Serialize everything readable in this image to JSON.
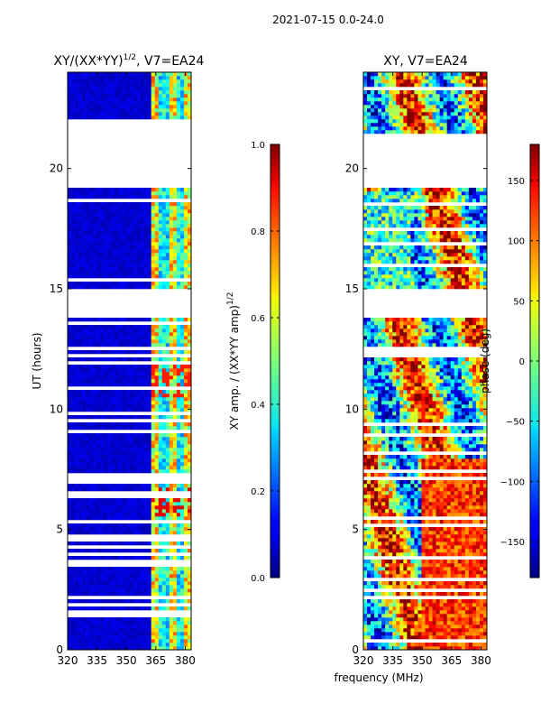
{
  "figure": {
    "suptitle": "2021-07-15 0.0-24.0"
  },
  "chart_data": [
    {
      "type": "heatmap",
      "title_main": "XY/(XX*YY)",
      "title_exp": "1/2",
      "title_suffix": ", V7=EA24",
      "xlabel": "",
      "ylabel": "UT (hours)",
      "xlim": [
        320,
        383
      ],
      "ylim": [
        0,
        24
      ],
      "x_ticks": [
        320,
        335,
        350,
        365,
        380
      ],
      "y_ticks": [
        0,
        5,
        10,
        15,
        20
      ],
      "colorbar": {
        "label_main": "XY amp. / (XX*YY amp)",
        "label_exp": "1/2",
        "range": [
          0.0,
          1.0
        ],
        "ticks": [
          "0.0",
          "0.2",
          "0.4",
          "0.6",
          "0.8",
          "1.0"
        ],
        "tick_values": [
          0.0,
          0.2,
          0.4,
          0.6,
          0.8,
          1.0
        ]
      },
      "blank_ut_ranges": [
        [
          21.45,
          22.1
        ],
        [
          19.2,
          21.45
        ],
        [
          13.85,
          15.05
        ]
      ],
      "active_freq_band_mhz": [
        363,
        383
      ]
    },
    {
      "type": "heatmap",
      "title_main": "XY, V7=EA24",
      "xlabel": "frequency (MHz)",
      "ylabel": "",
      "xlim": [
        320,
        383
      ],
      "ylim": [
        0,
        24
      ],
      "x_ticks": [
        320,
        335,
        350,
        365,
        380
      ],
      "y_ticks": [
        0,
        5,
        10,
        15,
        20
      ],
      "colorbar": {
        "label_main": "phase (deg)",
        "range": [
          -180,
          180
        ],
        "ticks": [
          "−150",
          "−100",
          "−50",
          "0",
          "50",
          "100",
          "150"
        ],
        "tick_values": [
          -150,
          -100,
          -50,
          0,
          50,
          100,
          150
        ]
      },
      "blank_ut_ranges": [
        [
          19.2,
          21.45
        ],
        [
          13.85,
          15.05
        ]
      ]
    }
  ]
}
